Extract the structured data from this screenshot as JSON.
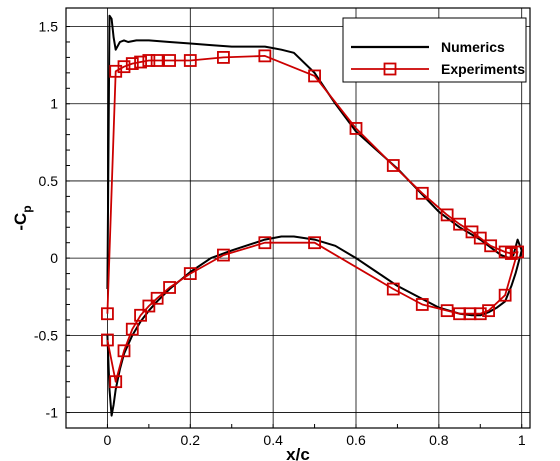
{
  "chart_data": {
    "type": "line",
    "title": "",
    "xlabel": "x/c",
    "ylabel_main": "-C",
    "ylabel_sub": "p",
    "xlim": [
      -0.1,
      1.02
    ],
    "ylim": [
      -1.1,
      1.62
    ],
    "xticks": [
      0,
      0.2,
      0.4,
      0.6,
      0.8,
      1
    ],
    "xtick_labels": [
      "0",
      "0.2",
      "0.4",
      "0.6",
      "0.8",
      "1"
    ],
    "yticks": [
      -1,
      -0.5,
      0,
      0.5,
      1,
      1.5
    ],
    "ytick_labels": [
      "-1",
      "-0.5",
      "0",
      "0.5",
      "1",
      "1.5"
    ],
    "grid": true,
    "legend_position": "top-right",
    "series": [
      {
        "name": "Numerics",
        "color": "#000000",
        "marker": "none",
        "x": [
          0.0,
          0.005,
          0.01,
          0.015,
          0.02,
          0.03,
          0.04,
          0.05,
          0.07,
          0.1,
          0.15,
          0.2,
          0.25,
          0.3,
          0.35,
          0.38,
          0.4,
          0.42,
          0.45,
          0.5,
          0.55,
          0.6,
          0.65,
          0.7,
          0.75,
          0.8,
          0.85,
          0.9,
          0.93,
          0.95,
          0.97,
          0.98,
          0.99,
          1.0,
          0.99,
          0.985,
          0.975,
          0.96,
          0.94,
          0.92,
          0.9,
          0.88,
          0.85,
          0.8,
          0.75,
          0.7,
          0.65,
          0.6,
          0.55,
          0.5,
          0.45,
          0.42,
          0.38,
          0.3,
          0.25,
          0.2,
          0.15,
          0.12,
          0.1,
          0.08,
          0.06,
          0.04,
          0.03,
          0.02,
          0.015,
          0.01,
          0.005,
          0.0
        ],
        "y": [
          -0.2,
          1.57,
          1.55,
          1.43,
          1.35,
          1.4,
          1.41,
          1.4,
          1.41,
          1.41,
          1.4,
          1.39,
          1.38,
          1.37,
          1.37,
          1.37,
          1.36,
          1.35,
          1.33,
          1.2,
          1.0,
          0.82,
          0.7,
          0.58,
          0.44,
          0.3,
          0.2,
          0.12,
          0.06,
          0.02,
          0.0,
          0.02,
          0.12,
          0.05,
          -0.05,
          -0.1,
          -0.18,
          -0.28,
          -0.32,
          -0.35,
          -0.37,
          -0.37,
          -0.36,
          -0.32,
          -0.25,
          -0.18,
          -0.09,
          0.0,
          0.08,
          0.12,
          0.14,
          0.14,
          0.12,
          0.05,
          0.0,
          -0.09,
          -0.2,
          -0.28,
          -0.34,
          -0.41,
          -0.5,
          -0.62,
          -0.72,
          -0.85,
          -0.95,
          -1.02,
          -0.85,
          -0.5
        ]
      },
      {
        "name": "Experiments",
        "color": "#cc0000",
        "marker": "square",
        "x": [
          0.0,
          0.02,
          0.04,
          0.06,
          0.08,
          0.1,
          0.12,
          0.15,
          0.2,
          0.28,
          0.38,
          0.5,
          0.6,
          0.69,
          0.76,
          0.82,
          0.85,
          0.88,
          0.9,
          0.925,
          0.96,
          0.975,
          0.99,
          0.96,
          0.92,
          0.9,
          0.875,
          0.85,
          0.82,
          0.76,
          0.69,
          0.5,
          0.38,
          0.28,
          0.2,
          0.15,
          0.12,
          0.1,
          0.08,
          0.06,
          0.04,
          0.02,
          0.0
        ],
        "y": [
          -0.36,
          1.21,
          1.24,
          1.26,
          1.27,
          1.28,
          1.28,
          1.28,
          1.28,
          1.3,
          1.31,
          1.18,
          0.84,
          0.6,
          0.42,
          0.28,
          0.22,
          0.17,
          0.13,
          0.08,
          0.04,
          0.03,
          0.04,
          -0.24,
          -0.34,
          -0.36,
          -0.36,
          -0.36,
          -0.34,
          -0.3,
          -0.2,
          0.1,
          0.1,
          0.02,
          -0.1,
          -0.19,
          -0.26,
          -0.31,
          -0.37,
          -0.46,
          -0.6,
          -0.8,
          -0.53
        ]
      }
    ]
  }
}
